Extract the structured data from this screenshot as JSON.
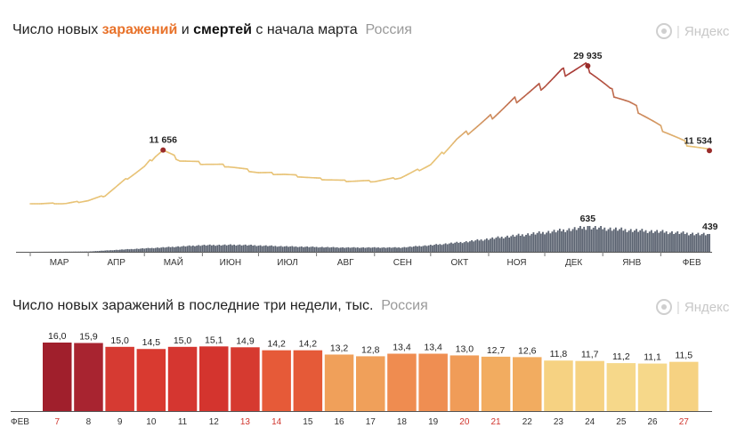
{
  "chart1": {
    "title": {
      "part1": "Число новых ",
      "infections": "заражений",
      "part2": " и ",
      "deaths": "смертей",
      "part3": " с начала марта",
      "region": "Россия"
    },
    "brand": "Яндекс",
    "colors": {
      "infections_early": "#e8c377",
      "infections_peak": "#a83a36",
      "deaths": "#5a6270"
    }
  },
  "chart2": {
    "title": {
      "text": "Число новых заражений в последние три недели, тыс.",
      "region": "Россия"
    },
    "brand": "Яндекс",
    "month_label": "ФЕВ"
  },
  "chart_data": [
    {
      "type": "line",
      "x_unit": "date",
      "x_months": [
        "МАР",
        "АПР",
        "МАЙ",
        "ИЮН",
        "ИЮЛ",
        "АВГ",
        "СЕН",
        "ОКТ",
        "НОЯ",
        "ДЕК",
        "ЯНВ",
        "ФЕВ"
      ],
      "x_range": [
        "2020-03-01",
        "2021-02-27"
      ],
      "series": [
        {
          "key": "infections",
          "points": [
            [
              "2020-03-01",
              0
            ],
            [
              "2020-03-20",
              60
            ],
            [
              "2020-04-01",
              700
            ],
            [
              "2020-04-10",
              1800
            ],
            [
              "2020-04-20",
              5000
            ],
            [
              "2020-05-01",
              8000
            ],
            [
              "2020-05-07",
              10500
            ],
            [
              "2020-05-11",
              11656
            ],
            [
              "2020-05-20",
              9500
            ],
            [
              "2020-06-01",
              8800
            ],
            [
              "2020-06-15",
              8200
            ],
            [
              "2020-07-01",
              6800
            ],
            [
              "2020-07-15",
              6400
            ],
            [
              "2020-08-01",
              5500
            ],
            [
              "2020-08-15",
              5000
            ],
            [
              "2020-09-01",
              4900
            ],
            [
              "2020-09-15",
              5700
            ],
            [
              "2020-10-01",
              8500
            ],
            [
              "2020-10-15",
              14000
            ],
            [
              "2020-11-01",
              18500
            ],
            [
              "2020-11-15",
              22500
            ],
            [
              "2020-12-01",
              26000
            ],
            [
              "2020-12-10",
              28500
            ],
            [
              "2020-12-24",
              29935
            ],
            [
              "2021-01-05",
              24500
            ],
            [
              "2021-01-15",
              22000
            ],
            [
              "2021-02-01",
              16500
            ],
            [
              "2021-02-15",
              13000
            ],
            [
              "2021-02-27",
              11534
            ]
          ]
        },
        {
          "key": "deaths",
          "points": [
            [
              "2020-03-01",
              0
            ],
            [
              "2020-04-01",
              8
            ],
            [
              "2020-04-20",
              60
            ],
            [
              "2020-05-10",
              110
            ],
            [
              "2020-06-01",
              170
            ],
            [
              "2020-06-20",
              180
            ],
            [
              "2020-07-15",
              140
            ],
            [
              "2020-08-15",
              110
            ],
            [
              "2020-09-15",
              110
            ],
            [
              "2020-10-01",
              170
            ],
            [
              "2020-10-20",
              260
            ],
            [
              "2020-11-10",
              390
            ],
            [
              "2020-12-01",
              500
            ],
            [
              "2020-12-24",
              635
            ],
            [
              "2021-01-15",
              560
            ],
            [
              "2021-02-01",
              520
            ],
            [
              "2021-02-27",
              439
            ]
          ]
        }
      ],
      "annotations": [
        {
          "date": "2020-05-11",
          "value": 11656,
          "label": "11 656"
        },
        {
          "date": "2020-12-24",
          "value": 29935,
          "label": "29 935"
        },
        {
          "date": "2021-02-27",
          "value": 11534,
          "label": "11 534"
        },
        {
          "date": "2020-12-24",
          "value": 635,
          "label": "635"
        },
        {
          "date": "2021-02-27",
          "value": 439,
          "label": "439"
        }
      ]
    },
    {
      "type": "bar",
      "categories": [
        "7",
        "8",
        "9",
        "10",
        "11",
        "12",
        "13",
        "14",
        "15",
        "16",
        "17",
        "18",
        "19",
        "20",
        "21",
        "22",
        "23",
        "24",
        "25",
        "26",
        "27"
      ],
      "values": [
        16.0,
        15.9,
        15.0,
        14.5,
        15.0,
        15.1,
        14.9,
        14.2,
        14.2,
        13.2,
        12.8,
        13.4,
        13.4,
        13.0,
        12.7,
        12.6,
        11.8,
        11.7,
        11.2,
        11.1,
        11.5
      ],
      "value_labels": [
        "16,0",
        "15,9",
        "15,0",
        "14,5",
        "15,0",
        "15,1",
        "14,9",
        "14,2",
        "14,2",
        "13,2",
        "12,8",
        "13,4",
        "13,4",
        "13,0",
        "12,7",
        "12,6",
        "11,8",
        "11,7",
        "11,2",
        "11,1",
        "11,5"
      ],
      "weekend": [
        true,
        false,
        false,
        false,
        false,
        false,
        true,
        true,
        false,
        false,
        false,
        false,
        false,
        true,
        true,
        false,
        false,
        false,
        false,
        false,
        true
      ],
      "colors": [
        "#a01f2c",
        "#a82430",
        "#d63a32",
        "#d93a30",
        "#d53630",
        "#d4342e",
        "#d63a30",
        "#e65a38",
        "#e55a38",
        "#f0a05a",
        "#f0a05a",
        "#ef8c50",
        "#ef8e52",
        "#f09c58",
        "#f2ac60",
        "#f2ac60",
        "#f6d282",
        "#f6d282",
        "#f6d88a",
        "#f6d88a",
        "#f6d282"
      ],
      "ylim": [
        0,
        17.5
      ]
    }
  ]
}
